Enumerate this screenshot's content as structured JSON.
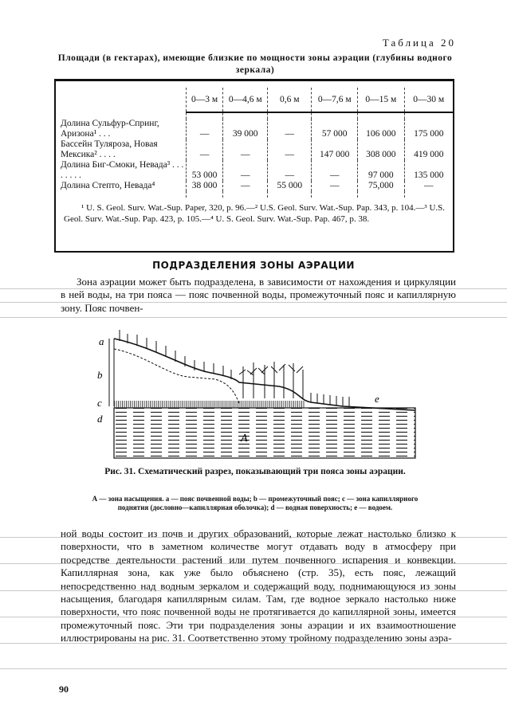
{
  "table": {
    "number": "Таблица 20",
    "caption": "Площади (в гектарах), имеющие близкие по мощности зоны аэрации (глубины водного зеркала)",
    "columns": [
      "0—3 м",
      "0—4,6 м",
      "0,6 м",
      "0—7,6 м",
      "0—15 м",
      "0—30 м"
    ],
    "rows": [
      {
        "label": "Долина Сульфур-Спринг, Аризона¹ . . .",
        "values": [
          "—",
          "39 000",
          "—",
          "57 000",
          "106 000",
          "175 000"
        ]
      },
      {
        "label": "Бассейн Туляроза, Новая Мексика² . . . .",
        "values": [
          "—",
          "—",
          "—",
          "147 000",
          "308 000",
          "419 000"
        ]
      },
      {
        "label": "Долина Биг-Смоки, Невада³ . . . . . . . .",
        "values": [
          "53 000",
          "—",
          "—",
          "—",
          "97 000",
          "135 000"
        ]
      },
      {
        "label": "Долина Степто, Невада⁴",
        "values": [
          "38 000",
          "—",
          "55 000",
          "—",
          "75,000",
          "—"
        ]
      }
    ],
    "footnotes": "¹ U. S. Geol. Surv. Wat.-Sup. Paper, 320, p. 96.—² U.S. Geol. Surv. Wat.-Sup. Pap. 343, p. 104.—³ U.S. Geol. Surv. Wat.-Sup. Pap. 423, p. 105.—⁴ U. S. Geol. Surv. Wat.-Sup. Pap. 467, p. 38."
  },
  "section_heading": "ПОДРАЗДЕЛЕНИЯ ЗОНЫ АЭРАЦИИ",
  "paragraph1": "Зона аэрации может быть подразделена, в зависимости от нахождения и циркуляции в ней воды, на три пояса — пояс почвенной воды, промежуточный пояс и капиллярную зону. Пояс почвен-",
  "figure": {
    "labels": {
      "a": "a",
      "b": "b",
      "c": "c",
      "d": "d",
      "e": "e",
      "A": "A"
    },
    "caption": "Рис. 31. Схематический разрез, показывающий три пояса зоны аэрации.",
    "legend": "А — зона насыщения. a — пояс почвенной воды; b — промежуточный пояс; c — зона капиллярного поднятия (дословно—капиллярная оболочка); d — водная поверхность; e — водоем."
  },
  "paragraph2": "ной воды состоит из почв и других образований, которые лежат настолько близко к поверхности, что в заметном количестве могут отдавать воду в атмосферу при посредстве деятельности растений или путем почвенного испарения и конвекции. Капиллярная зона, как уже было объяснено (стр. 35), есть пояс, лежащий непосредственно над водным зеркалом и содержащий воду, поднимающуюся из зоны насыщения, благодаря капиллярным силам. Там, где водное зеркало настолько ниже поверхности, что пояс почвенной воды не протягивается до капиллярной зоны, имеется промежуточный пояс. Эти три подразделения зоны аэрации и их взаимоотношение иллюстрированы на рис. 31. Соответственно этому тройному подразделению зоны аэра-",
  "page_number": "90"
}
